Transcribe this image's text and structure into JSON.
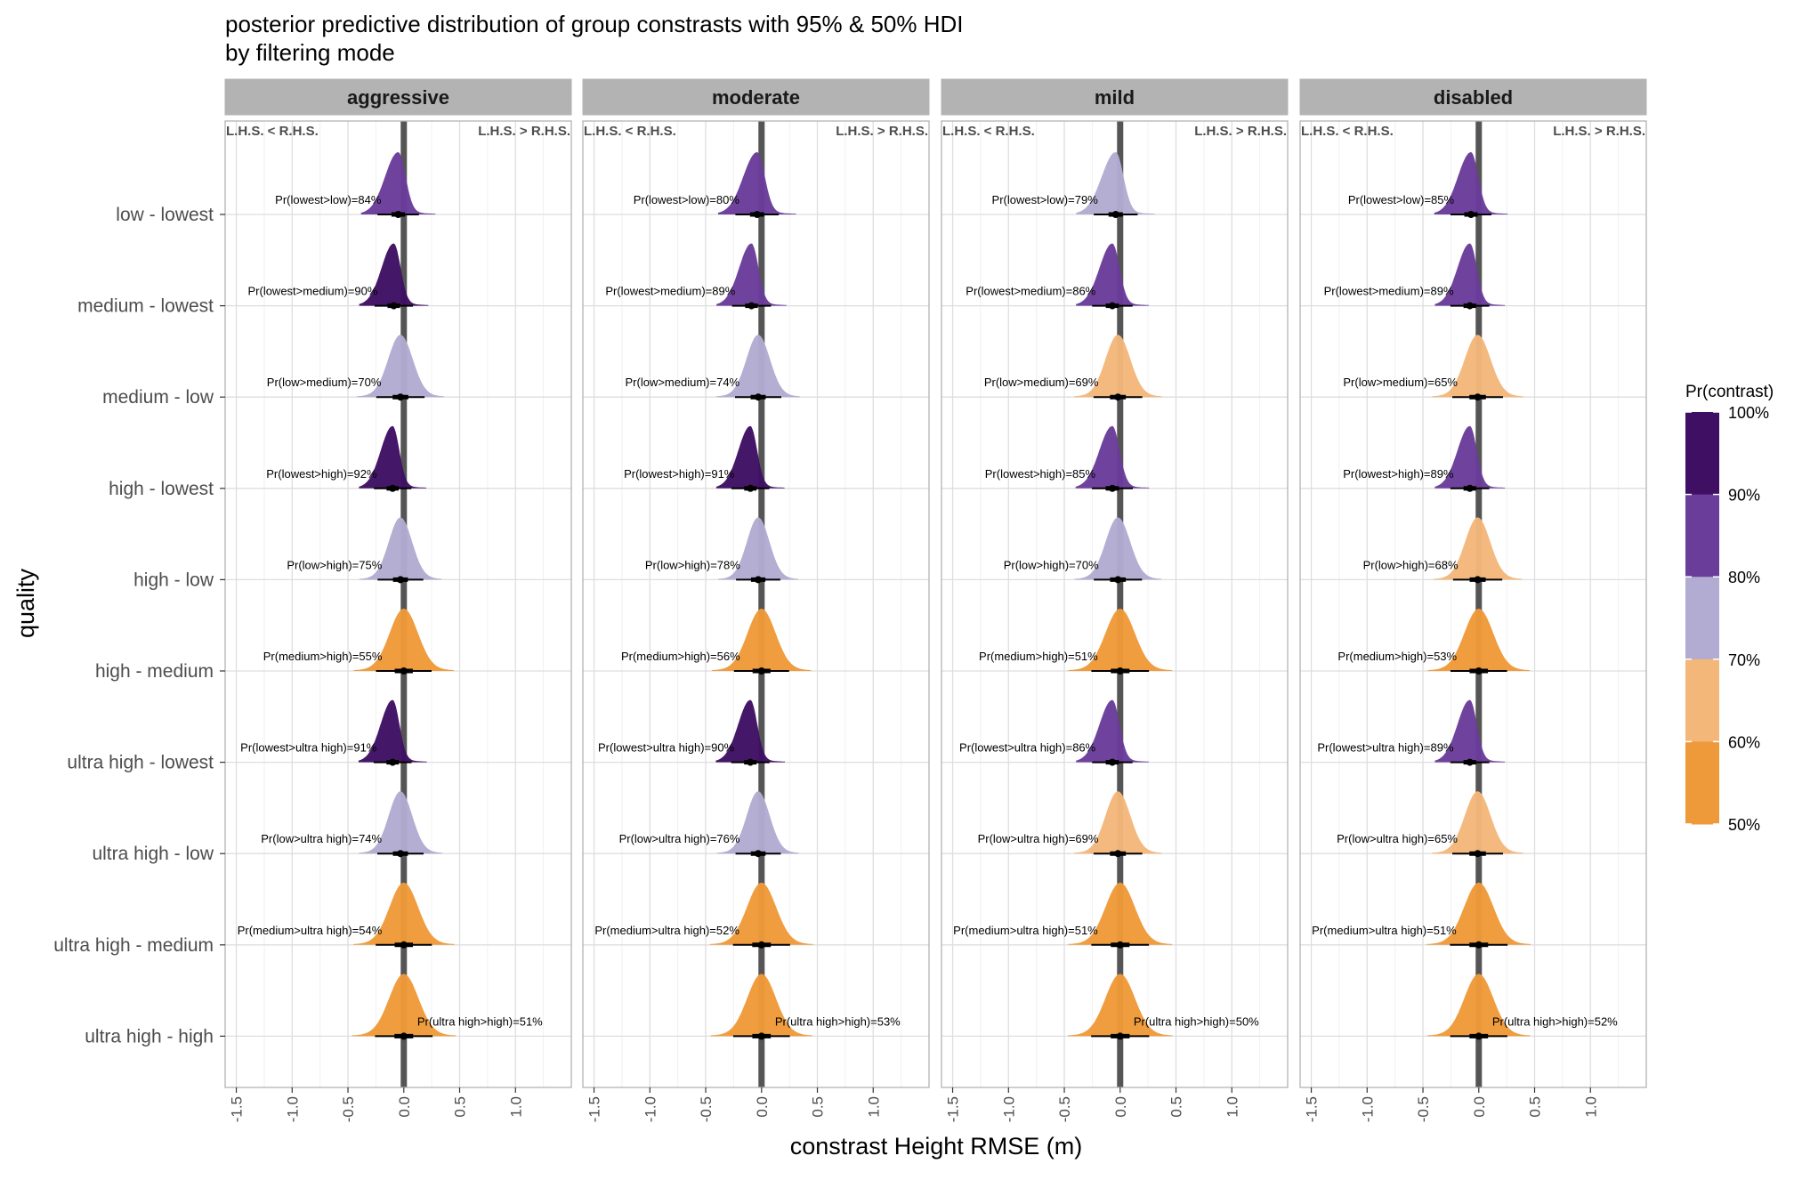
{
  "title_line1": "posterior predictive distribution of group constrasts with 95% & 50% HDI",
  "title_line2": "by filtering mode",
  "side_labels": {
    "left": "L.H.S. < R.H.S.",
    "right": "L.H.S. > R.H.S."
  },
  "legend": {
    "title": "Pr(contrast)",
    "labels": [
      "100%",
      "90%",
      "80%",
      "70%",
      "60%",
      "50%"
    ],
    "bands": [
      {
        "from": 90,
        "to": 100,
        "color": "#3f0f63"
      },
      {
        "from": 80,
        "to": 90,
        "color": "#6a3d9a"
      },
      {
        "from": 70,
        "to": 80,
        "color": "#b2abd2"
      },
      {
        "from": 60,
        "to": 70,
        "color": "#f4b77a"
      },
      {
        "from": 50,
        "to": 60,
        "color": "#ef9a3a"
      }
    ]
  },
  "chart_data": {
    "type": "ridgeline-density",
    "xlabel": "constrast Height RMSE (m)",
    "ylabel": "quality",
    "xlim": [
      -1.6,
      1.5
    ],
    "xticks": [
      -1.5,
      -1.0,
      -0.5,
      0.0,
      0.5,
      1.0
    ],
    "xtick_labels": [
      "-1.5",
      "-1.0",
      "-0.5",
      "0.0",
      "0.5",
      "1.0"
    ],
    "hdi": [
      "95%",
      "50%"
    ],
    "grid": true,
    "legend_position": "right",
    "categories": [
      "low - lowest",
      "medium - lowest",
      "medium - low",
      "high - lowest",
      "high - low",
      "high - medium",
      "ultra high - lowest",
      "ultra high - low",
      "ultra high - medium",
      "ultra high - high"
    ],
    "panels": [
      {
        "name": "aggressive",
        "contrasts": [
          {
            "label": "Pr(lowest>low)=84%",
            "prob": 84,
            "median": -0.05
          },
          {
            "label": "Pr(lowest>medium)=90%",
            "prob": 90,
            "median": -0.09
          },
          {
            "label": "Pr(low>medium)=70%",
            "prob": 70,
            "median": -0.03
          },
          {
            "label": "Pr(lowest>high)=92%",
            "prob": 92,
            "median": -0.1
          },
          {
            "label": "Pr(low>high)=75%",
            "prob": 75,
            "median": -0.03
          },
          {
            "label": "Pr(medium>high)=55%",
            "prob": 55,
            "median": 0.0
          },
          {
            "label": "Pr(lowest>ultra high)=91%",
            "prob": 91,
            "median": -0.1
          },
          {
            "label": "Pr(low>ultra high)=74%",
            "prob": 74,
            "median": -0.03
          },
          {
            "label": "Pr(medium>ultra high)=54%",
            "prob": 54,
            "median": 0.0
          },
          {
            "label": "Pr(ultra high>high)=51%",
            "prob": 51,
            "median": 0.0
          }
        ]
      },
      {
        "name": "moderate",
        "contrasts": [
          {
            "label": "Pr(lowest>low)=80%",
            "prob": 80,
            "median": -0.04
          },
          {
            "label": "Pr(lowest>medium)=89%",
            "prob": 89,
            "median": -0.09
          },
          {
            "label": "Pr(low>medium)=74%",
            "prob": 74,
            "median": -0.03
          },
          {
            "label": "Pr(lowest>high)=91%",
            "prob": 91,
            "median": -0.1
          },
          {
            "label": "Pr(low>high)=78%",
            "prob": 78,
            "median": -0.03
          },
          {
            "label": "Pr(medium>high)=56%",
            "prob": 56,
            "median": 0.0
          },
          {
            "label": "Pr(lowest>ultra high)=90%",
            "prob": 90,
            "median": -0.1
          },
          {
            "label": "Pr(low>ultra high)=76%",
            "prob": 76,
            "median": -0.03
          },
          {
            "label": "Pr(medium>ultra high)=52%",
            "prob": 52,
            "median": 0.0
          },
          {
            "label": "Pr(ultra high>high)=53%",
            "prob": 53,
            "median": 0.0
          }
        ]
      },
      {
        "name": "mild",
        "contrasts": [
          {
            "label": "Pr(lowest>low)=79%",
            "prob": 79,
            "median": -0.04
          },
          {
            "label": "Pr(lowest>medium)=86%",
            "prob": 86,
            "median": -0.07
          },
          {
            "label": "Pr(low>medium)=69%",
            "prob": 69,
            "median": -0.02
          },
          {
            "label": "Pr(lowest>high)=85%",
            "prob": 85,
            "median": -0.07
          },
          {
            "label": "Pr(low>high)=70%",
            "prob": 70,
            "median": -0.02
          },
          {
            "label": "Pr(medium>high)=51%",
            "prob": 51,
            "median": 0.0
          },
          {
            "label": "Pr(lowest>ultra high)=86%",
            "prob": 86,
            "median": -0.07
          },
          {
            "label": "Pr(low>ultra high)=69%",
            "prob": 69,
            "median": -0.02
          },
          {
            "label": "Pr(medium>ultra high)=51%",
            "prob": 51,
            "median": 0.0
          },
          {
            "label": "Pr(ultra high>high)=50%",
            "prob": 50,
            "median": 0.0
          }
        ]
      },
      {
        "name": "disabled",
        "contrasts": [
          {
            "label": "Pr(lowest>low)=85%",
            "prob": 85,
            "median": -0.07
          },
          {
            "label": "Pr(lowest>medium)=89%",
            "prob": 89,
            "median": -0.08
          },
          {
            "label": "Pr(low>medium)=65%",
            "prob": 65,
            "median": -0.01
          },
          {
            "label": "Pr(lowest>high)=89%",
            "prob": 89,
            "median": -0.08
          },
          {
            "label": "Pr(low>high)=68%",
            "prob": 68,
            "median": -0.01
          },
          {
            "label": "Pr(medium>high)=53%",
            "prob": 53,
            "median": 0.0
          },
          {
            "label": "Pr(lowest>ultra high)=89%",
            "prob": 89,
            "median": -0.08
          },
          {
            "label": "Pr(low>ultra high)=65%",
            "prob": 65,
            "median": -0.01
          },
          {
            "label": "Pr(medium>ultra high)=51%",
            "prob": 51,
            "median": 0.0
          },
          {
            "label": "Pr(ultra high>high)=52%",
            "prob": 52,
            "median": 0.0
          }
        ]
      }
    ]
  }
}
